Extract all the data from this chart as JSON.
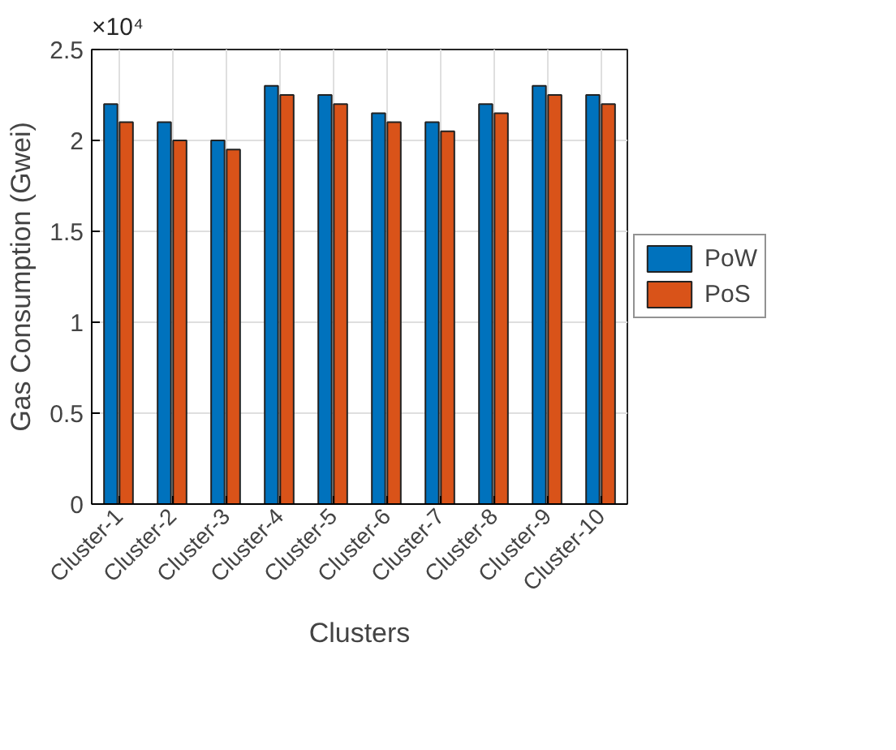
{
  "chart_data": {
    "type": "bar",
    "xlabel": "Clusters",
    "ylabel": "Gas Consumption (Gwei)",
    "annotations": [
      "×10⁴"
    ],
    "categories": [
      "Cluster-1",
      "Cluster-2",
      "Cluster-3",
      "Cluster-4",
      "Cluster-5",
      "Cluster-6",
      "Cluster-7",
      "Cluster-8",
      "Cluster-9",
      "Cluster-10"
    ],
    "series": [
      {
        "name": "PoW",
        "color": "#0072bd",
        "values": [
          2.2,
          2.1,
          2.0,
          2.3,
          2.25,
          2.15,
          2.1,
          2.2,
          2.3,
          2.25
        ]
      },
      {
        "name": "PoS",
        "color": "#d95319",
        "values": [
          2.1,
          2.0,
          1.95,
          2.25,
          2.2,
          2.1,
          2.05,
          2.15,
          2.25,
          2.2
        ]
      }
    ],
    "ylim": [
      0,
      2.5
    ],
    "yticks": [
      0,
      0.5,
      1,
      1.5,
      2,
      2.5
    ],
    "grid": true,
    "legend": "right"
  }
}
